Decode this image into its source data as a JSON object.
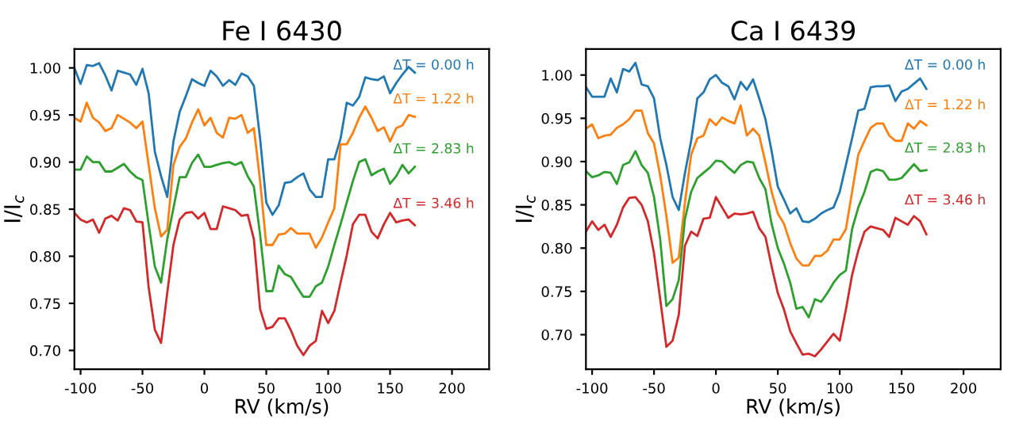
{
  "chart_data": [
    {
      "type": "line",
      "title": "Fe I 6430",
      "xlabel": "RV (km/s)",
      "ylabel": "I/I$_{c}$",
      "xlim": [
        -105,
        230
      ],
      "ylim": [
        0.68,
        1.02
      ],
      "xticks": [
        -100,
        -50,
        0,
        50,
        100,
        150,
        200
      ],
      "yticks": [
        {
          "value": 0.7,
          "label": "0.70"
        },
        {
          "value": 0.75,
          "label": "0.75"
        },
        {
          "value": 0.8,
          "label": "0.80"
        },
        {
          "value": 0.85,
          "label": "0.85"
        },
        {
          "value": 0.9,
          "label": "0.90"
        },
        {
          "value": 0.95,
          "label": "0.95"
        },
        {
          "value": 1.0,
          "label": "1.00"
        }
      ],
      "grid": false,
      "legend": false,
      "x": [
        -105,
        -100,
        -95,
        -90,
        -85,
        -80,
        -75,
        -70,
        -65,
        -60,
        -55,
        -50,
        -45,
        -40,
        -35,
        -30,
        -25,
        -20,
        -15,
        -10,
        -5,
        0,
        5,
        10,
        15,
        20,
        25,
        30,
        35,
        40,
        45,
        50,
        55,
        60,
        65,
        70,
        75,
        80,
        85,
        90,
        95,
        100,
        105,
        110,
        115,
        120,
        125,
        130,
        135,
        140,
        145,
        150,
        155,
        160,
        165,
        170
      ],
      "series": [
        {
          "name": "ΔT = 0.00 h",
          "color": "#1f77b4",
          "values": [
            1.0,
            0.983,
            1.003,
            1.002,
            1.005,
            0.992,
            0.976,
            0.997,
            0.995,
            0.993,
            0.982,
            0.999,
            0.973,
            0.911,
            0.885,
            0.863,
            0.922,
            0.953,
            0.97,
            0.988,
            0.984,
            0.981,
            0.997,
            0.991,
            0.981,
            0.987,
            0.982,
            0.994,
            0.991,
            0.981,
            0.925,
            0.857,
            0.844,
            0.854,
            0.878,
            0.879,
            0.884,
            0.888,
            0.871,
            0.863,
            0.863,
            0.903,
            0.903,
            0.925,
            0.963,
            0.96,
            0.969,
            0.99,
            0.988,
            0.987,
            0.991,
            0.973,
            0.984,
            0.993,
            1.001,
            0.995
          ]
        },
        {
          "name": "ΔT = 1.22 h",
          "color": "#ff7f0e",
          "values": [
            0.947,
            0.943,
            0.963,
            0.947,
            0.942,
            0.933,
            0.936,
            0.95,
            0.946,
            0.942,
            0.936,
            0.943,
            0.897,
            0.851,
            0.821,
            0.828,
            0.897,
            0.916,
            0.925,
            0.942,
            0.956,
            0.939,
            0.947,
            0.931,
            0.926,
            0.947,
            0.946,
            0.95,
            0.931,
            0.936,
            0.88,
            0.812,
            0.812,
            0.823,
            0.824,
            0.83,
            0.824,
            0.824,
            0.824,
            0.809,
            0.82,
            0.836,
            0.851,
            0.919,
            0.919,
            0.931,
            0.947,
            0.959,
            0.947,
            0.933,
            0.937,
            0.922,
            0.936,
            0.939,
            0.95,
            0.948
          ]
        },
        {
          "name": "ΔT = 2.83 h",
          "color": "#2ca02c",
          "values": [
            0.892,
            0.892,
            0.906,
            0.9,
            0.9,
            0.89,
            0.89,
            0.894,
            0.898,
            0.89,
            0.884,
            0.881,
            0.834,
            0.789,
            0.772,
            0.818,
            0.851,
            0.884,
            0.884,
            0.899,
            0.908,
            0.895,
            0.895,
            0.897,
            0.899,
            0.9,
            0.897,
            0.9,
            0.885,
            0.874,
            0.823,
            0.763,
            0.763,
            0.79,
            0.781,
            0.778,
            0.767,
            0.757,
            0.757,
            0.768,
            0.772,
            0.789,
            0.812,
            0.834,
            0.857,
            0.88,
            0.9,
            0.903,
            0.886,
            0.89,
            0.893,
            0.877,
            0.885,
            0.897,
            0.888,
            0.895
          ]
        },
        {
          "name": "ΔT = 3.46 h",
          "color": "#d62728",
          "values": [
            0.846,
            0.839,
            0.836,
            0.839,
            0.825,
            0.84,
            0.843,
            0.838,
            0.851,
            0.849,
            0.837,
            0.836,
            0.767,
            0.722,
            0.708,
            0.761,
            0.812,
            0.839,
            0.846,
            0.847,
            0.84,
            0.846,
            0.829,
            0.829,
            0.853,
            0.851,
            0.849,
            0.843,
            0.844,
            0.818,
            0.744,
            0.723,
            0.725,
            0.734,
            0.734,
            0.721,
            0.705,
            0.695,
            0.705,
            0.71,
            0.742,
            0.729,
            0.742,
            0.772,
            0.801,
            0.834,
            0.844,
            0.844,
            0.826,
            0.819,
            0.834,
            0.846,
            0.836,
            0.838,
            0.839,
            0.833
          ]
        }
      ]
    },
    {
      "type": "line",
      "title": "Ca I 6439",
      "xlabel": "RV (km/s)",
      "ylabel": "I/I$_{c}$",
      "xlim": [
        -105,
        230
      ],
      "ylim": [
        0.66,
        1.03
      ],
      "xticks": [
        -100,
        -50,
        0,
        50,
        100,
        150,
        200
      ],
      "yticks": [
        {
          "value": 0.7,
          "label": "0.70"
        },
        {
          "value": 0.75,
          "label": "0.75"
        },
        {
          "value": 0.8,
          "label": "0.80"
        },
        {
          "value": 0.85,
          "label": "0.85"
        },
        {
          "value": 0.9,
          "label": "0.90"
        },
        {
          "value": 0.95,
          "label": "0.95"
        },
        {
          "value": 1.0,
          "label": "1.00"
        }
      ],
      "grid": false,
      "legend": false,
      "x": [
        -105,
        -100,
        -95,
        -90,
        -85,
        -80,
        -75,
        -70,
        -65,
        -60,
        -55,
        -50,
        -45,
        -40,
        -35,
        -30,
        -25,
        -20,
        -15,
        -10,
        -5,
        0,
        5,
        10,
        15,
        20,
        25,
        30,
        35,
        40,
        45,
        50,
        55,
        60,
        65,
        70,
        75,
        80,
        85,
        90,
        95,
        100,
        105,
        110,
        115,
        120,
        125,
        130,
        135,
        140,
        145,
        150,
        155,
        160,
        165,
        170
      ],
      "series": [
        {
          "name": "ΔT = 0.00 h",
          "color": "#1f77b4",
          "values": [
            0.986,
            0.975,
            0.975,
            0.975,
            0.996,
            0.98,
            1.007,
            1.004,
            1.014,
            0.989,
            0.987,
            0.973,
            0.927,
            0.896,
            0.859,
            0.844,
            0.887,
            0.924,
            0.973,
            0.98,
            0.995,
            1.0,
            0.991,
            0.987,
            0.972,
            0.992,
            0.983,
            0.995,
            0.973,
            0.949,
            0.912,
            0.871,
            0.856,
            0.84,
            0.846,
            0.831,
            0.83,
            0.834,
            0.84,
            0.844,
            0.847,
            0.865,
            0.896,
            0.927,
            0.959,
            0.961,
            0.986,
            0.987,
            0.987,
            0.988,
            0.97,
            0.981,
            0.984,
            0.99,
            0.996,
            0.984
          ]
        },
        {
          "name": "ΔT = 1.22 h",
          "color": "#ff7f0e",
          "values": [
            0.938,
            0.943,
            0.927,
            0.93,
            0.931,
            0.939,
            0.943,
            0.949,
            0.959,
            0.959,
            0.933,
            0.921,
            0.884,
            0.837,
            0.783,
            0.789,
            0.853,
            0.908,
            0.927,
            0.93,
            0.949,
            0.942,
            0.951,
            0.947,
            0.944,
            0.965,
            0.93,
            0.938,
            0.93,
            0.899,
            0.865,
            0.84,
            0.828,
            0.806,
            0.788,
            0.78,
            0.78,
            0.791,
            0.791,
            0.797,
            0.81,
            0.81,
            0.822,
            0.865,
            0.908,
            0.924,
            0.939,
            0.944,
            0.944,
            0.93,
            0.924,
            0.924,
            0.944,
            0.938,
            0.947,
            0.942
          ]
        },
        {
          "name": "ΔT = 2.83 h",
          "color": "#2ca02c",
          "values": [
            0.889,
            0.882,
            0.884,
            0.888,
            0.887,
            0.874,
            0.896,
            0.899,
            0.912,
            0.896,
            0.887,
            0.859,
            0.81,
            0.733,
            0.741,
            0.763,
            0.834,
            0.865,
            0.881,
            0.887,
            0.893,
            0.901,
            0.9,
            0.893,
            0.887,
            0.896,
            0.9,
            0.899,
            0.881,
            0.868,
            0.828,
            0.8,
            0.782,
            0.76,
            0.73,
            0.732,
            0.72,
            0.741,
            0.738,
            0.748,
            0.76,
            0.769,
            0.774,
            0.822,
            0.847,
            0.865,
            0.888,
            0.891,
            0.889,
            0.879,
            0.879,
            0.881,
            0.889,
            0.897,
            0.889,
            0.89
          ]
        },
        {
          "name": "ΔT = 3.46 h",
          "color": "#d62728",
          "values": [
            0.819,
            0.831,
            0.821,
            0.827,
            0.813,
            0.827,
            0.847,
            0.858,
            0.859,
            0.85,
            0.831,
            0.794,
            0.741,
            0.686,
            0.693,
            0.723,
            0.803,
            0.819,
            0.814,
            0.834,
            0.835,
            0.859,
            0.847,
            0.835,
            0.84,
            0.839,
            0.84,
            0.842,
            0.823,
            0.813,
            0.779,
            0.748,
            0.729,
            0.704,
            0.69,
            0.677,
            0.678,
            0.675,
            0.683,
            0.692,
            0.701,
            0.693,
            0.729,
            0.769,
            0.797,
            0.819,
            0.825,
            0.823,
            0.821,
            0.813,
            0.835,
            0.831,
            0.827,
            0.837,
            0.831,
            0.816
          ]
        }
      ]
    }
  ]
}
